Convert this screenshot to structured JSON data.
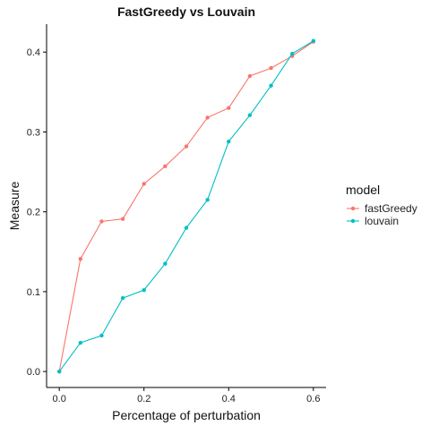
{
  "chart_data": {
    "type": "line",
    "title": "FastGreedy vs Louvain",
    "xlabel": "Percentage of perturbation",
    "ylabel": "Measure",
    "xlim": [
      -0.03,
      0.63
    ],
    "ylim": [
      -0.02,
      0.435
    ],
    "xticks": [
      0.0,
      0.2,
      0.4,
      0.6
    ],
    "xtick_labels": [
      "0.0",
      "0.2",
      "0.4",
      "0.6"
    ],
    "yticks": [
      0.0,
      0.1,
      0.2,
      0.3,
      0.4
    ],
    "ytick_labels": [
      "0.0",
      "0.1",
      "0.2",
      "0.3",
      "0.4"
    ],
    "grid": false,
    "legend": {
      "title": "model",
      "placement": "right"
    },
    "x": [
      0.0,
      0.05,
      0.1,
      0.15,
      0.2,
      0.25,
      0.3,
      0.35,
      0.4,
      0.45,
      0.5,
      0.55,
      0.6
    ],
    "series": [
      {
        "name": "fastGreedy",
        "color": "#F8766D",
        "values": [
          0.0,
          0.141,
          0.188,
          0.191,
          0.235,
          0.257,
          0.282,
          0.318,
          0.33,
          0.37,
          0.38,
          0.395,
          0.413
        ]
      },
      {
        "name": "louvain",
        "color": "#00BFC4",
        "values": [
          0.0,
          0.036,
          0.045,
          0.092,
          0.102,
          0.135,
          0.18,
          0.215,
          0.288,
          0.321,
          0.358,
          0.398,
          0.414
        ]
      }
    ]
  }
}
